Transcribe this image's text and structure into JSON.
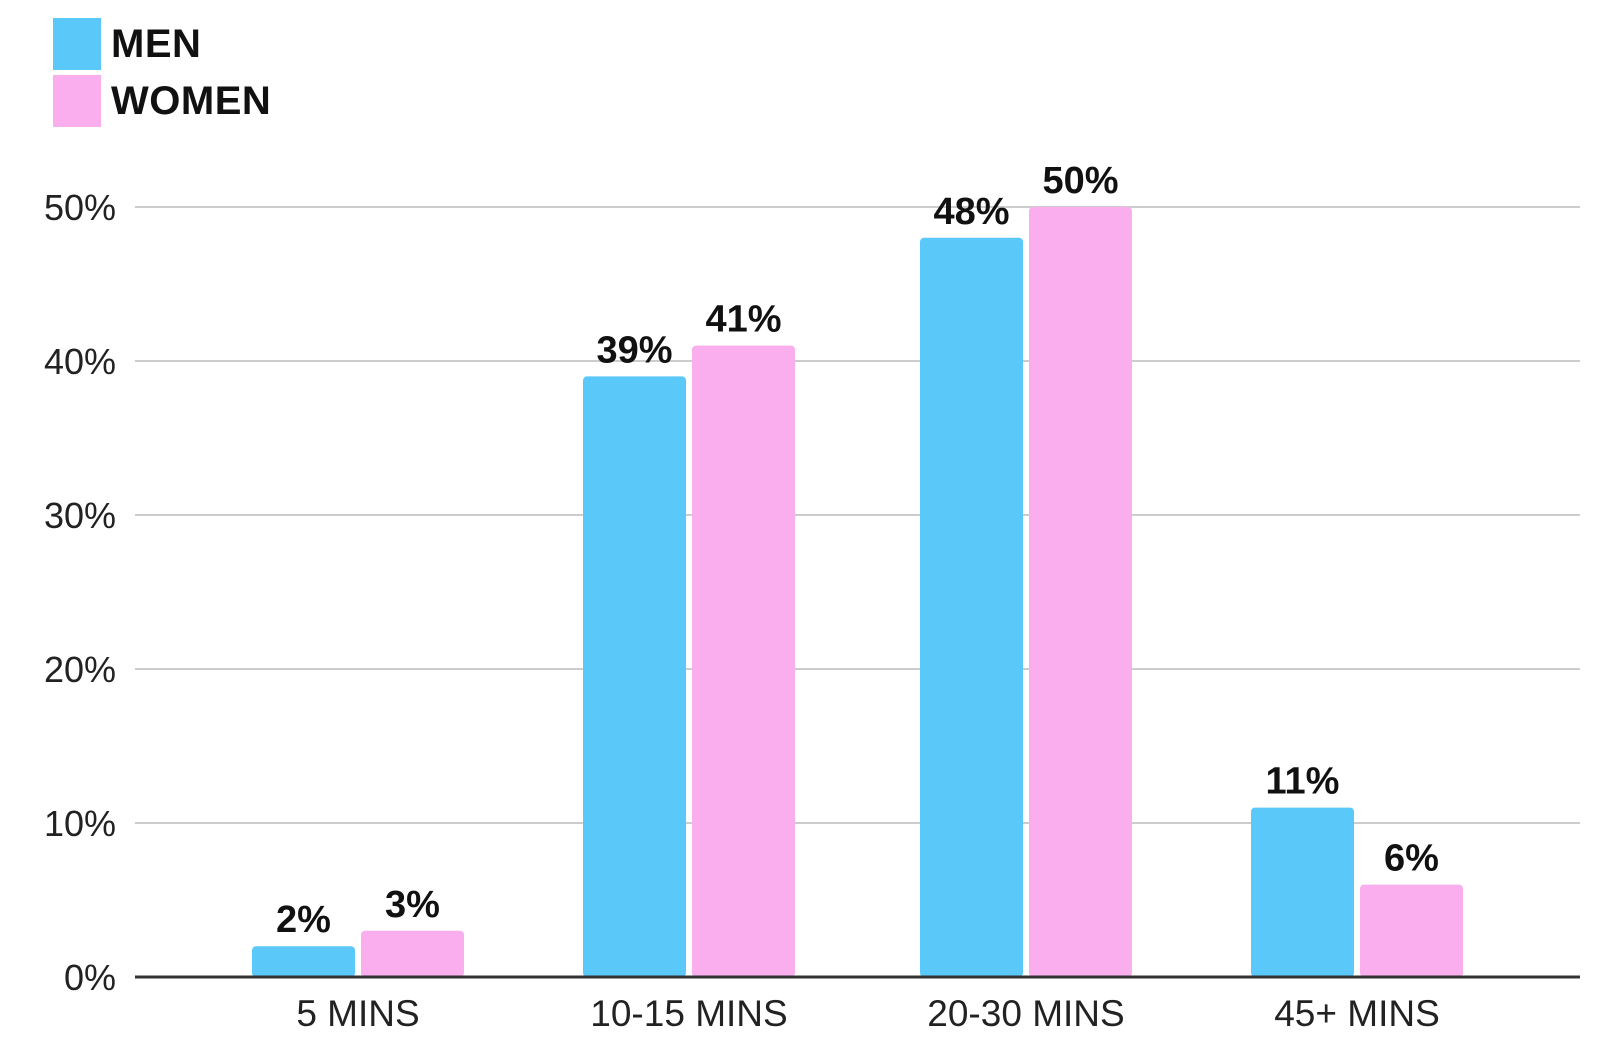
{
  "chart_data": {
    "type": "bar",
    "categories": [
      "5 MINS",
      "10-15 MINS",
      "20-30 MINS",
      "45+ MINS"
    ],
    "series": [
      {
        "name": "MEN",
        "color": "#5BC8FA",
        "values": [
          2,
          39,
          48,
          11
        ],
        "labels": [
          "2%",
          "39%",
          "48%",
          "11%"
        ]
      },
      {
        "name": "WOMEN",
        "color": "#FAAEEE",
        "values": [
          3,
          41,
          50,
          6
        ],
        "labels": [
          "3%",
          "41%",
          "50%",
          "6%"
        ]
      }
    ],
    "y_ticks": [
      {
        "value": 0,
        "label": "0%"
      },
      {
        "value": 10,
        "label": "10%"
      },
      {
        "value": 20,
        "label": "20%"
      },
      {
        "value": 30,
        "label": "30%"
      },
      {
        "value": 40,
        "label": "40%"
      },
      {
        "value": 50,
        "label": "50%"
      }
    ],
    "ylim": [
      0,
      50
    ],
    "title": "",
    "xlabel": "",
    "ylabel": "",
    "grid": true,
    "legend_position": "top-left",
    "gridline_color": "#CCCCCC",
    "axis_color": "#333333"
  }
}
